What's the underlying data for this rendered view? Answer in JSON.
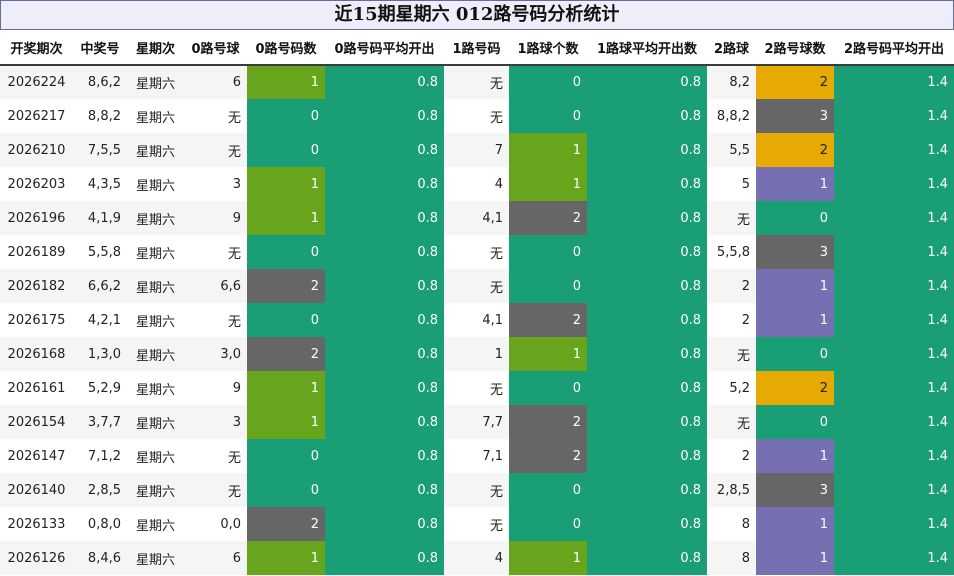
{
  "title": "近15期星期六 012路号码分析统计",
  "headers": [
    "开奖期次",
    "中奖号",
    "星期次",
    "0路号球",
    "0路号码数",
    "0路号码平均开出",
    "1路号码",
    "1路球个数",
    "1路球平均开出数",
    "2路球",
    "2路号球数",
    "2路号码平均开出"
  ],
  "colors": {
    "teal": "#1a9e75",
    "green": "#67a61c",
    "gray": "#666666",
    "orange": "#e6aa03",
    "purple": "#7670b3"
  },
  "rows": [
    {
      "period": "2026224",
      "number": "8,6,2",
      "weekday": "星期六",
      "road0": "6",
      "road0_count": "1",
      "road0_avg": "0.8",
      "road1": "无",
      "road1_count": "0",
      "road1_avg": "0.8",
      "road2": "8,2",
      "road2_count": "2",
      "road2_avg": "1.4"
    },
    {
      "period": "2026217",
      "number": "8,8,2",
      "weekday": "星期六",
      "road0": "无",
      "road0_count": "0",
      "road0_avg": "0.8",
      "road1": "无",
      "road1_count": "0",
      "road1_avg": "0.8",
      "road2": "8,8,2",
      "road2_count": "3",
      "road2_avg": "1.4"
    },
    {
      "period": "2026210",
      "number": "7,5,5",
      "weekday": "星期六",
      "road0": "无",
      "road0_count": "0",
      "road0_avg": "0.8",
      "road1": "7",
      "road1_count": "1",
      "road1_avg": "0.8",
      "road2": "5,5",
      "road2_count": "2",
      "road2_avg": "1.4"
    },
    {
      "period": "2026203",
      "number": "4,3,5",
      "weekday": "星期六",
      "road0": "3",
      "road0_count": "1",
      "road0_avg": "0.8",
      "road1": "4",
      "road1_count": "1",
      "road1_avg": "0.8",
      "road2": "5",
      "road2_count": "1",
      "road2_avg": "1.4"
    },
    {
      "period": "2026196",
      "number": "4,1,9",
      "weekday": "星期六",
      "road0": "9",
      "road0_count": "1",
      "road0_avg": "0.8",
      "road1": "4,1",
      "road1_count": "2",
      "road1_avg": "0.8",
      "road2": "无",
      "road2_count": "0",
      "road2_avg": "1.4"
    },
    {
      "period": "2026189",
      "number": "5,5,8",
      "weekday": "星期六",
      "road0": "无",
      "road0_count": "0",
      "road0_avg": "0.8",
      "road1": "无",
      "road1_count": "0",
      "road1_avg": "0.8",
      "road2": "5,5,8",
      "road2_count": "3",
      "road2_avg": "1.4"
    },
    {
      "period": "2026182",
      "number": "6,6,2",
      "weekday": "星期六",
      "road0": "6,6",
      "road0_count": "2",
      "road0_avg": "0.8",
      "road1": "无",
      "road1_count": "0",
      "road1_avg": "0.8",
      "road2": "2",
      "road2_count": "1",
      "road2_avg": "1.4"
    },
    {
      "period": "2026175",
      "number": "4,2,1",
      "weekday": "星期六",
      "road0": "无",
      "road0_count": "0",
      "road0_avg": "0.8",
      "road1": "4,1",
      "road1_count": "2",
      "road1_avg": "0.8",
      "road2": "2",
      "road2_count": "1",
      "road2_avg": "1.4"
    },
    {
      "period": "2026168",
      "number": "1,3,0",
      "weekday": "星期六",
      "road0": "3,0",
      "road0_count": "2",
      "road0_avg": "0.8",
      "road1": "1",
      "road1_count": "1",
      "road1_avg": "0.8",
      "road2": "无",
      "road2_count": "0",
      "road2_avg": "1.4"
    },
    {
      "period": "2026161",
      "number": "5,2,9",
      "weekday": "星期六",
      "road0": "9",
      "road0_count": "1",
      "road0_avg": "0.8",
      "road1": "无",
      "road1_count": "0",
      "road1_avg": "0.8",
      "road2": "5,2",
      "road2_count": "2",
      "road2_avg": "1.4"
    },
    {
      "period": "2026154",
      "number": "3,7,7",
      "weekday": "星期六",
      "road0": "3",
      "road0_count": "1",
      "road0_avg": "0.8",
      "road1": "7,7",
      "road1_count": "2",
      "road1_avg": "0.8",
      "road2": "无",
      "road2_count": "0",
      "road2_avg": "1.4"
    },
    {
      "period": "2026147",
      "number": "7,1,2",
      "weekday": "星期六",
      "road0": "无",
      "road0_count": "0",
      "road0_avg": "0.8",
      "road1": "7,1",
      "road1_count": "2",
      "road1_avg": "0.8",
      "road2": "2",
      "road2_count": "1",
      "road2_avg": "1.4"
    },
    {
      "period": "2026140",
      "number": "2,8,5",
      "weekday": "星期六",
      "road0": "无",
      "road0_count": "0",
      "road0_avg": "0.8",
      "road1": "无",
      "road1_count": "0",
      "road1_avg": "0.8",
      "road2": "2,8,5",
      "road2_count": "3",
      "road2_avg": "1.4"
    },
    {
      "period": "2026133",
      "number": "0,8,0",
      "weekday": "星期六",
      "road0": "0,0",
      "road0_count": "2",
      "road0_avg": "0.8",
      "road1": "无",
      "road1_count": "0",
      "road1_avg": "0.8",
      "road2": "8",
      "road2_count": "1",
      "road2_avg": "1.4"
    },
    {
      "period": "2026126",
      "number": "8,4,6",
      "weekday": "星期六",
      "road0": "6",
      "road0_count": "1",
      "road0_avg": "0.8",
      "road1": "4",
      "road1_count": "1",
      "road1_avg": "0.8",
      "road2": "8",
      "road2_count": "1",
      "road2_avg": "1.4"
    }
  ]
}
